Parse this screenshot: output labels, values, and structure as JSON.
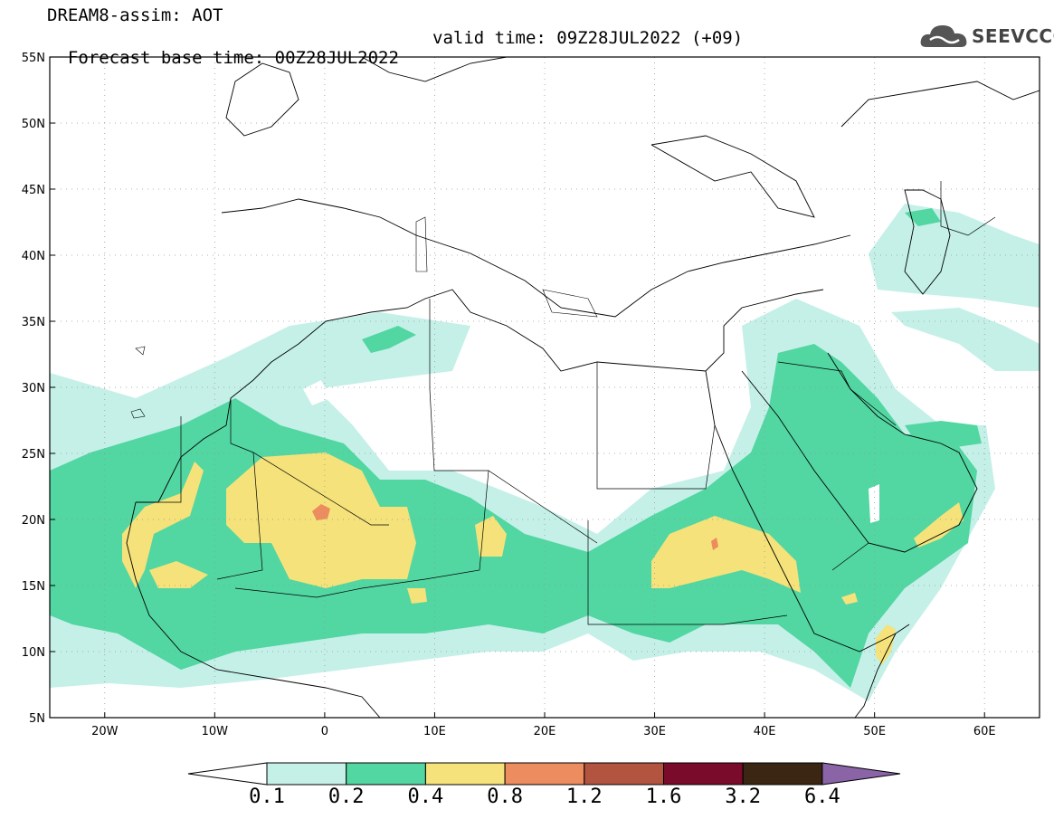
{
  "header": {
    "line1": "DREAM8-assim: AOT",
    "line2": "Forecast base time: 00Z28JUL2022",
    "valid": "valid time: 09Z28JUL2022 (+09)",
    "logo_text": "SEEVCCC",
    "logo_icon": "cloud-icon"
  },
  "map": {
    "lon_range": [
      -25,
      65
    ],
    "lat_range": [
      5,
      55
    ],
    "lat_ticks": [
      "55N",
      "50N",
      "45N",
      "40N",
      "35N",
      "30N",
      "25N",
      "20N",
      "15N",
      "10N",
      "5N"
    ],
    "lon_ticks": [
      "20W",
      "10W",
      "0",
      "10E",
      "20E",
      "30E",
      "40E",
      "50E",
      "60E"
    ],
    "grid": "dotted"
  },
  "colorbar": {
    "labels": [
      "0.1",
      "0.2",
      "0.4",
      "0.8",
      "1.2",
      "1.6",
      "3.2",
      "6.4"
    ],
    "colors": [
      "#ffffff",
      "#c4f0e8",
      "#52d6a2",
      "#f5e27a",
      "#ec8c5f",
      "#b25440",
      "#7a0b2a",
      "#3a2612",
      "#8b64a8"
    ]
  }
}
